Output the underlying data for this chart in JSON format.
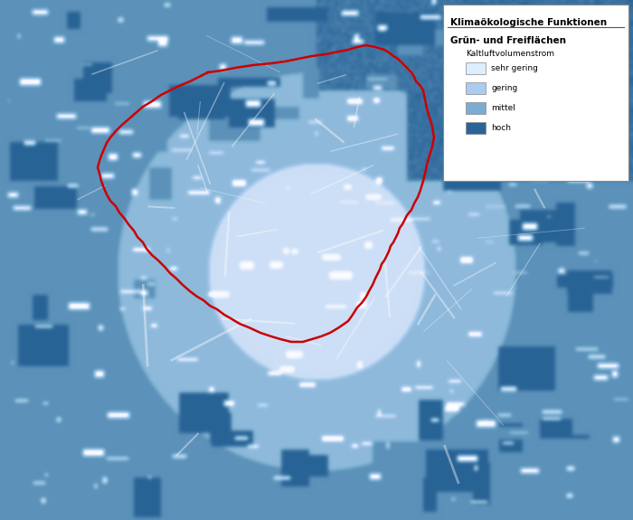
{
  "title": "Klimaökologische Funktionen",
  "legend_title": "Grün- und Freiflächen",
  "legend_subtitle": "Kaltluftvolumenstrom",
  "legend_items": [
    "sehr gering",
    "gering",
    "mittel",
    "hoch"
  ],
  "legend_colors": [
    "#ddeeff",
    "#aaccee",
    "#7aadcf",
    "#2a6496"
  ],
  "bg_color": "#aaccee",
  "map_bg": "#aaccee",
  "colors": {
    "sehr_gering": "#ddeeff",
    "gering": "#aaccee",
    "mittel": "#7aadcf",
    "hoch": "#2a6496",
    "white": "#ffffff",
    "red_border": "#cc0000"
  },
  "figsize": [
    7.0,
    5.75
  ],
  "dpi": 100
}
